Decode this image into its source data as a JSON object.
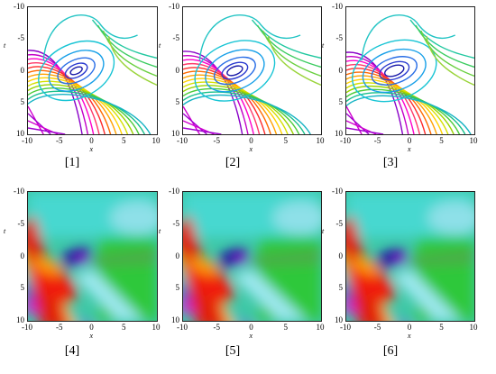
{
  "panels": [
    {
      "caption": "[1]",
      "type": "contour",
      "xlabel": "x",
      "ylabel": "t"
    },
    {
      "caption": "[2]",
      "type": "contour",
      "xlabel": "x",
      "ylabel": "t"
    },
    {
      "caption": "[3]",
      "type": "contour",
      "xlabel": "x",
      "ylabel": "t"
    },
    {
      "caption": "[4]",
      "type": "density",
      "xlabel": "x",
      "ylabel": "t"
    },
    {
      "caption": "[5]",
      "type": "density",
      "xlabel": "x",
      "ylabel": "t"
    },
    {
      "caption": "[6]",
      "type": "density",
      "xlabel": "x",
      "ylabel": "t"
    }
  ],
  "x_ticks": [
    "-10",
    "-5",
    "0",
    "5",
    "10"
  ],
  "y_ticks": [
    "-10",
    "-5",
    "0",
    "5",
    "10"
  ],
  "axis_range": {
    "x": [
      -10,
      10
    ],
    "t": [
      -10,
      10
    ]
  }
}
